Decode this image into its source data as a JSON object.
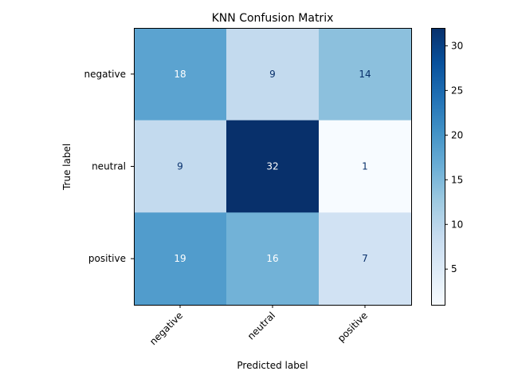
{
  "chart_data": {
    "type": "heatmap",
    "title": "KNN Confusion Matrix",
    "xlabel": "Predicted label",
    "ylabel": "True label",
    "x_categories": [
      "negative",
      "neutral",
      "positive"
    ],
    "y_categories": [
      "negative",
      "neutral",
      "positive"
    ],
    "values": [
      [
        18,
        9,
        14
      ],
      [
        9,
        32,
        1
      ],
      [
        19,
        16,
        7
      ]
    ],
    "colorbar": {
      "range": [
        1,
        32
      ],
      "ticks": [
        5,
        10,
        15,
        20,
        25,
        30
      ]
    },
    "colormap": "Blues",
    "grid": false
  }
}
